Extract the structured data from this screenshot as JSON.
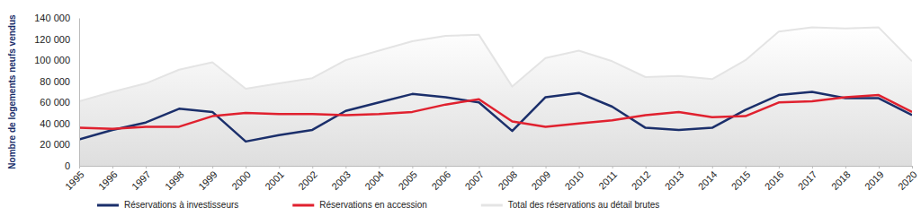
{
  "chart_data": {
    "type": "line",
    "y_label": "Nombre de logements neufs vendus",
    "x": [
      1995,
      1996,
      1997,
      1998,
      1999,
      2000,
      2001,
      2002,
      2003,
      2004,
      2005,
      2006,
      2007,
      2008,
      2009,
      2010,
      2011,
      2012,
      2013,
      2014,
      2015,
      2016,
      2017,
      2018,
      2019,
      2020
    ],
    "xlim": [
      1995,
      2020
    ],
    "xticks": [
      1995,
      1996,
      1997,
      1998,
      1999,
      2000,
      2001,
      2002,
      2003,
      2004,
      2005,
      2006,
      2007,
      2008,
      2009,
      2010,
      2011,
      2012,
      2013,
      2014,
      2015,
      2016,
      2017,
      2018,
      2019,
      2020
    ],
    "ylim": [
      0,
      140000
    ],
    "yticks": [
      0,
      {
        "value": 20000,
        "label": "20 000"
      },
      {
        "value": 40000,
        "label": "40 000"
      },
      {
        "value": 60000,
        "label": "60 000"
      },
      {
        "value": 80000,
        "label": "80 000"
      },
      {
        "value": 100000,
        "label": "100 000"
      },
      {
        "value": 120000,
        "label": "120 000"
      },
      {
        "value": 140000,
        "label": "140 000"
      }
    ],
    "grid": false,
    "legend": "bottom",
    "series": [
      {
        "name": "Réservations à investisseurs",
        "color": "#1b2f6b",
        "type": "line",
        "values": [
          25000,
          34000,
          41000,
          54000,
          51000,
          23000,
          29000,
          34000,
          52000,
          60000,
          68000,
          65000,
          60000,
          33000,
          65000,
          69000,
          56000,
          36000,
          34000,
          36000,
          53000,
          67000,
          70000,
          64000,
          64000,
          48000
        ]
      },
      {
        "name": "Réservations en accession",
        "color": "#e0212f",
        "type": "line",
        "values": [
          36000,
          35000,
          37000,
          37000,
          47000,
          50000,
          49000,
          49000,
          48000,
          49000,
          51000,
          58000,
          63000,
          42000,
          37000,
          40000,
          43000,
          48000,
          51000,
          46000,
          47000,
          60000,
          61000,
          65000,
          67000,
          51000
        ]
      },
      {
        "name": "Total des réservations au détail brutes",
        "color": "#e4e4e4",
        "type": "area",
        "values": [
          61000,
          70000,
          78000,
          91000,
          98000,
          73000,
          78000,
          83000,
          100000,
          109000,
          118000,
          123000,
          124000,
          75000,
          102000,
          109000,
          99000,
          84000,
          85000,
          82000,
          100000,
          127000,
          131000,
          130000,
          131000,
          99000
        ]
      }
    ]
  }
}
